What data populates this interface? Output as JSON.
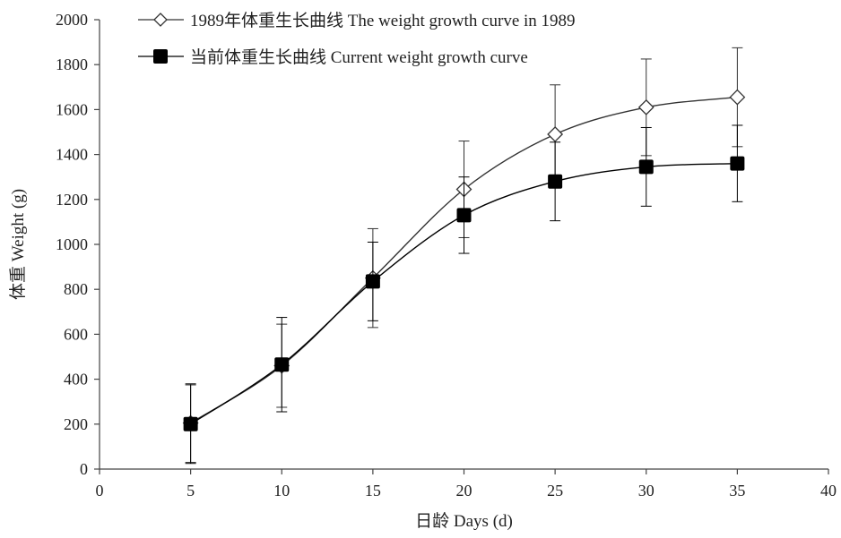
{
  "chart_data": {
    "type": "line",
    "xlabel": "日龄 Days (d)",
    "ylabel": "体重 Weight (g)",
    "xlim": [
      0,
      40
    ],
    "ylim": [
      0,
      2000
    ],
    "x_ticks": [
      "0",
      "5",
      "10",
      "15",
      "20",
      "25",
      "30",
      "35",
      "40"
    ],
    "y_ticks": [
      "0",
      "200",
      "400",
      "600",
      "800",
      "1000",
      "1200",
      "1400",
      "1600",
      "1800",
      "2000"
    ],
    "grid": false,
    "legend_position": "top-left",
    "series": [
      {
        "name": "1989年体重生长曲线 The weight growth curve in 1989",
        "marker": "open-diamond",
        "color": "#333333",
        "x": [
          5,
          10,
          15,
          20,
          25,
          30,
          35
        ],
        "y": [
          205,
          460,
          850,
          1245,
          1490,
          1610,
          1655
        ],
        "error": [
          175,
          185,
          220,
          215,
          220,
          215,
          220
        ]
      },
      {
        "name": "当前体重生长曲线 Current weight growth curve",
        "marker": "filled-square",
        "color": "#000000",
        "x": [
          5,
          10,
          15,
          20,
          25,
          30,
          35
        ],
        "y": [
          200,
          465,
          835,
          1130,
          1280,
          1345,
          1360
        ],
        "error": [
          175,
          210,
          175,
          170,
          175,
          175,
          170
        ]
      }
    ]
  }
}
